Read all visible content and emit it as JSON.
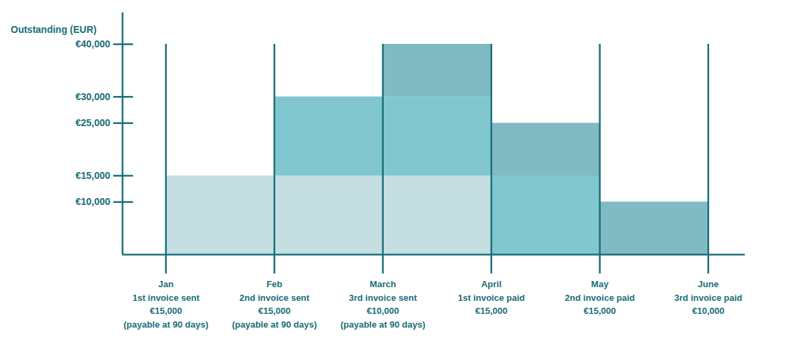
{
  "chart_data": {
    "type": "area",
    "stacked": true,
    "line_style": "step",
    "ylabel": "Outstanding (EUR)",
    "categories": [
      "Jan\n1st invoice sent\n€15,000\n(payable at 90 days)",
      "Feb\n2nd invoice sent\n€15,000\n(payable at 90 days)",
      "March\n3rd invoice sent\n€10,000\n(payable at 90 days)",
      "April\n1st invoice paid\n€15,000",
      "May\n2nd invoice paid\n€15,000",
      "June\n3rd invoice paid\n€10,000"
    ],
    "series": [
      {
        "color": "#c4dee2",
        "values": [
          15000,
          15000,
          15000,
          0,
          0,
          0
        ]
      },
      {
        "color": "#81c7d0",
        "values": [
          0,
          15000,
          15000,
          15000,
          0,
          0
        ]
      },
      {
        "color": "#80bac3",
        "values": [
          0,
          0,
          10000,
          10000,
          10000,
          0
        ]
      }
    ],
    "ylim": [
      0,
      46000
    ],
    "yticks": [
      {
        "value": 10000,
        "label": "€10,000"
      },
      {
        "value": 15000,
        "label": "€15,000"
      },
      {
        "value": 25000,
        "label": "€25,000"
      },
      {
        "value": 30000,
        "label": "€30,000"
      },
      {
        "value": 40000,
        "label": "€40,000"
      }
    ]
  }
}
